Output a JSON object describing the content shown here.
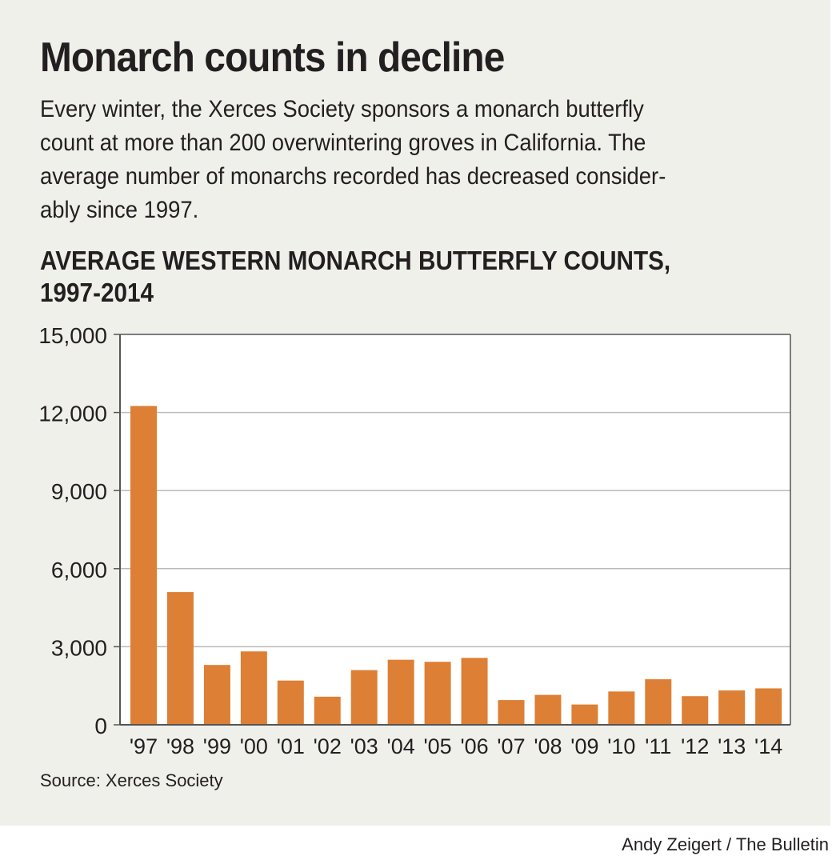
{
  "headline": "Monarch counts in decline",
  "dek": [
    "Every winter, the Xerces Society sponsors a monarch butterfly",
    "count at more than 200 overwintering groves in California. The",
    "average number of monarchs recorded has decreased consider-",
    "ably since 1997."
  ],
  "source": "Source: Xerces Society",
  "credit": "Andy Zeigert / The Bulletin",
  "colors": {
    "bar": "#dd7f34",
    "background": "#f0f0eb",
    "plot": "#ffffff",
    "grid": "#bbbbbb"
  },
  "chart_data": {
    "type": "bar",
    "title": "AVERAGE WESTERN MONARCH BUTTERFLY COUNTS,",
    "subtitle": "1997-2014",
    "categories": [
      "'97",
      "'98",
      "'99",
      "'00",
      "'01",
      "'02",
      "'03",
      "'04",
      "'05",
      "'06",
      "'07",
      "'08",
      "'09",
      "'10",
      "'11",
      "'12",
      "'13",
      "'14"
    ],
    "values": [
      12250,
      5100,
      2300,
      2820,
      1700,
      1080,
      2100,
      2500,
      2420,
      2570,
      950,
      1150,
      780,
      1280,
      1750,
      1100,
      1320,
      1400
    ],
    "ylim": [
      0,
      15000
    ],
    "yticks": [
      0,
      3000,
      6000,
      9000,
      12000,
      15000
    ],
    "ytick_labels": [
      "0",
      "3,000",
      "6,000",
      "9,000",
      "12,000",
      "15,000"
    ],
    "grid": true,
    "legend": "none"
  }
}
